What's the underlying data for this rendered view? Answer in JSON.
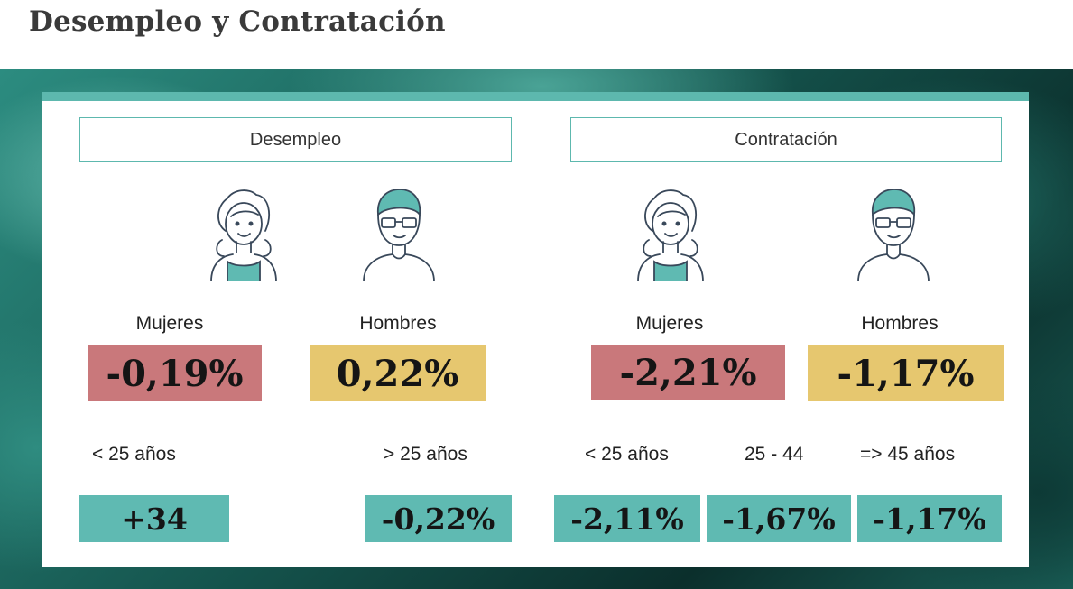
{
  "title": "Desempleo y Contratación",
  "colors": {
    "accent": "#5db8ae",
    "negative": "#c9787b",
    "neutral": "#e6c76f",
    "teal_box": "#5fbab2"
  },
  "desempleo": {
    "header": "Desempleo",
    "gender": {
      "women_label": "Mujeres",
      "women_value": "-0,19%",
      "men_label": "Hombres",
      "men_value": "0,22%"
    },
    "age": [
      {
        "label": "< 25 años",
        "value": "+34"
      },
      {
        "label": "> 25 años",
        "value": "-0,22%"
      }
    ]
  },
  "contratacion": {
    "header": "Contratación",
    "gender": {
      "women_label": "Mujeres",
      "women_value": "-2,21%",
      "men_label": "Hombres",
      "men_value": "-1,17%"
    },
    "age": [
      {
        "label": "< 25 años",
        "value": "-2,11%"
      },
      {
        "label": "25 - 44",
        "value": "-1,67%"
      },
      {
        "label": "=> 45 años",
        "value": "-1,17%"
      }
    ]
  },
  "icons": [
    "woman-avatar-icon",
    "man-avatar-icon"
  ]
}
